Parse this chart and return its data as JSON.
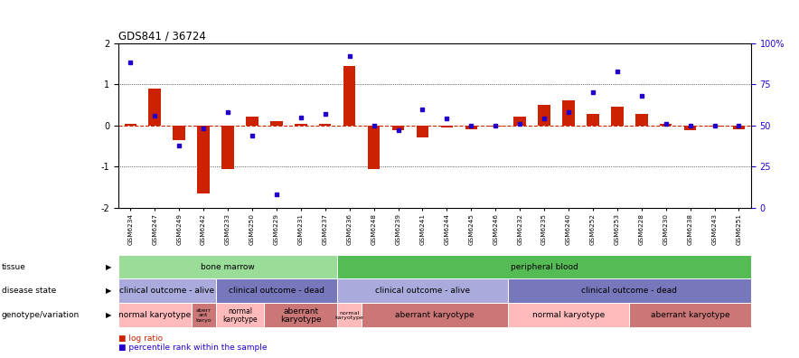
{
  "title": "GDS841 / 36724",
  "samples": [
    "GSM6234",
    "GSM6247",
    "GSM6249",
    "GSM6242",
    "GSM6233",
    "GSM6250",
    "GSM6229",
    "GSM6231",
    "GSM6237",
    "GSM6236",
    "GSM6248",
    "GSM6239",
    "GSM6241",
    "GSM6244",
    "GSM6245",
    "GSM6246",
    "GSM6232",
    "GSM6235",
    "GSM6240",
    "GSM6252",
    "GSM6253",
    "GSM6228",
    "GSM6230",
    "GSM6238",
    "GSM6243",
    "GSM6251"
  ],
  "log_ratio": [
    0.03,
    0.9,
    -0.35,
    -1.65,
    -1.05,
    0.22,
    0.1,
    0.03,
    0.03,
    1.45,
    -1.05,
    -0.12,
    -0.3,
    -0.05,
    -0.1,
    -0.03,
    0.22,
    0.5,
    0.6,
    0.28,
    0.45,
    0.28,
    0.03,
    -0.12,
    -0.03,
    -0.1
  ],
  "percentile": [
    0.88,
    0.56,
    0.38,
    0.48,
    0.58,
    0.44,
    0.08,
    0.55,
    0.57,
    0.92,
    0.5,
    0.47,
    0.6,
    0.54,
    0.5,
    0.5,
    0.51,
    0.54,
    0.58,
    0.7,
    0.83,
    0.68,
    0.51,
    0.5,
    0.5,
    0.5
  ],
  "tissue_groups": [
    {
      "label": "bone marrow",
      "start": 0,
      "end": 9,
      "color": "#99DD99"
    },
    {
      "label": "peripheral blood",
      "start": 9,
      "end": 26,
      "color": "#55BB55"
    }
  ],
  "disease_groups": [
    {
      "label": "clinical outcome - alive",
      "start": 0,
      "end": 4,
      "color": "#AAAADD"
    },
    {
      "label": "clinical outcome - dead",
      "start": 4,
      "end": 9,
      "color": "#7777BB"
    },
    {
      "label": "clinical outcome - alive",
      "start": 9,
      "end": 16,
      "color": "#AAAADD"
    },
    {
      "label": "clinical outcome - dead",
      "start": 16,
      "end": 26,
      "color": "#7777BB"
    }
  ],
  "genotype_groups": [
    {
      "label": "normal karyotype",
      "start": 0,
      "end": 3,
      "color": "#FFBBBB"
    },
    {
      "label": "aberr\nant\nkaryo",
      "start": 3,
      "end": 4,
      "color": "#CC7777"
    },
    {
      "label": "normal\nkaryotype",
      "start": 4,
      "end": 6,
      "color": "#FFBBBB"
    },
    {
      "label": "aberrant\nkaryotype",
      "start": 6,
      "end": 9,
      "color": "#CC7777"
    },
    {
      "label": "normal\nkaryotype",
      "start": 9,
      "end": 10,
      "color": "#FFBBBB"
    },
    {
      "label": "aberrant karyotype",
      "start": 10,
      "end": 16,
      "color": "#CC7777"
    },
    {
      "label": "normal karyotype",
      "start": 16,
      "end": 21,
      "color": "#FFBBBB"
    },
    {
      "label": "aberrant karyotype",
      "start": 21,
      "end": 26,
      "color": "#CC7777"
    }
  ],
  "ylim": [
    -2,
    2
  ],
  "bar_color": "#CC2200",
  "dot_color": "#2200CC",
  "hline_color": "#CC2200",
  "row_labels": [
    "tissue",
    "disease state",
    "genotype/variation"
  ]
}
